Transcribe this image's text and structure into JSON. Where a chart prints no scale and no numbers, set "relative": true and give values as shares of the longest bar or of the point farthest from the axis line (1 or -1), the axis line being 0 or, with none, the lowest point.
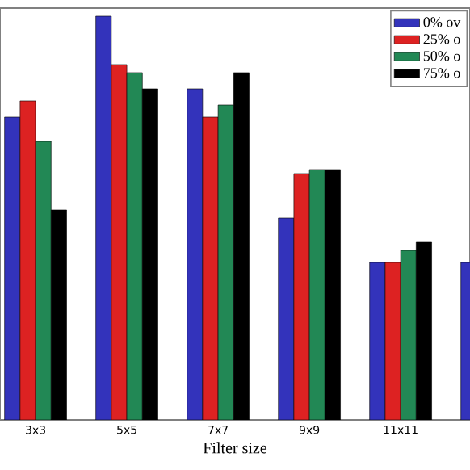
{
  "chart_data": {
    "type": "bar",
    "xlabel": "Filter size",
    "relative": true,
    "legend": "top right",
    "categories": [
      "3x3",
      "5x5",
      "7x7",
      "9x9",
      "11x11",
      null
    ],
    "series": [
      {
        "name": "0% ov",
        "color": "#3333bb",
        "values": [
          0.75,
          1,
          0.82,
          0.5,
          0.39,
          0.39
        ]
      },
      {
        "name": "25% o",
        "color": "#dd2222",
        "values": [
          0.79,
          0.88,
          0.75,
          0.61,
          0.39,
          null
        ]
      },
      {
        "name": "50% o",
        "color": "#228855",
        "values": [
          0.69,
          0.86,
          0.78,
          0.62,
          0.42,
          null
        ]
      },
      {
        "name": "75% o",
        "color": "#000000",
        "values": [
          0.52,
          0.82,
          0.86,
          0.62,
          0.44,
          null
        ]
      }
    ]
  }
}
